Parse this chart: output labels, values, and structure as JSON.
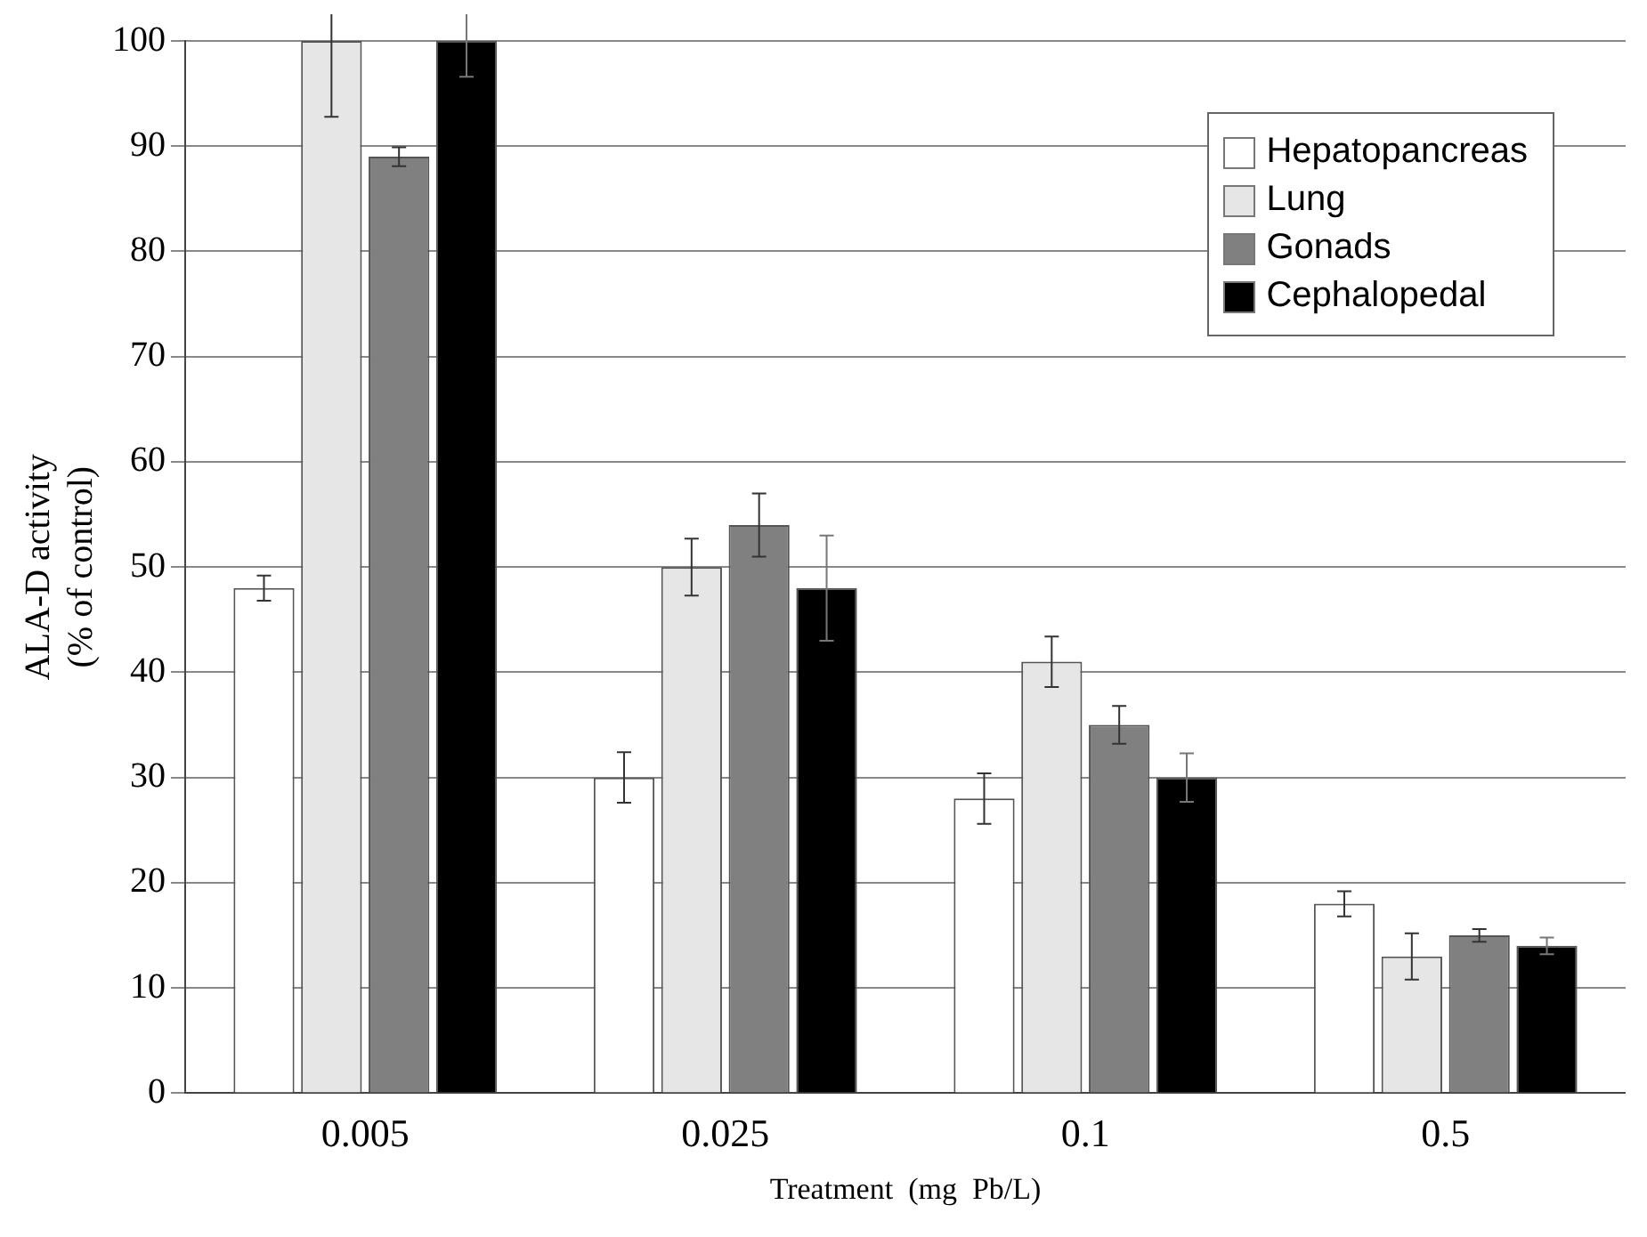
{
  "chart_data": {
    "type": "bar",
    "xlabel": "Treatment  (mg  Pb/L)",
    "ylabel": "ALA-D activity\n(% of control)",
    "categories": [
      "0.005",
      "0.025",
      "0.1",
      "0.5"
    ],
    "ylim": [
      0,
      100
    ],
    "yticks": [
      0,
      10,
      20,
      30,
      40,
      50,
      60,
      70,
      80,
      90,
      100
    ],
    "grid": "y",
    "legend": "top right",
    "series": [
      {
        "name": "Hepatopancreas",
        "color": "#ffffff",
        "values": [
          48,
          30,
          28,
          18
        ],
        "errors": [
          1.2,
          2.4,
          2.4,
          1.2
        ]
      },
      {
        "name": "Lung",
        "color": "#e6e6e6",
        "values": [
          100,
          50,
          41,
          13
        ],
        "errors": [
          7.2,
          2.7,
          2.4,
          2.2
        ]
      },
      {
        "name": "Gonads",
        "color": "#808080",
        "values": [
          89,
          54,
          35,
          15
        ],
        "errors": [
          0.9,
          3,
          1.8,
          0.6
        ]
      },
      {
        "name": "Cephalopedal",
        "color": "#000000",
        "values": [
          100,
          48,
          30,
          14
        ],
        "errors": [
          3.4,
          5,
          2.3,
          0.8
        ]
      }
    ]
  }
}
